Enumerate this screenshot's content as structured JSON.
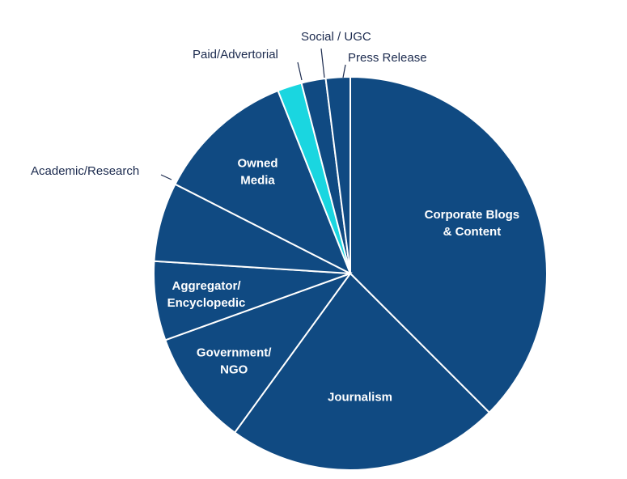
{
  "chart_data": {
    "type": "pie",
    "title": "",
    "start": "12 o'clock",
    "direction": "clockwise",
    "slices": [
      {
        "label": "Corporate Blogs & Content",
        "lines": [
          "Corporate Blogs",
          "& Content"
        ],
        "value": 37.5,
        "color": "#104a82",
        "label_position": "inside"
      },
      {
        "label": "Journalism",
        "lines": [
          "Journalism"
        ],
        "value": 22.5,
        "color": "#104a82",
        "label_position": "inside"
      },
      {
        "label": "Government/ NGO",
        "lines": [
          "Government/",
          "NGO"
        ],
        "value": 9.5,
        "color": "#104a82",
        "label_position": "inside"
      },
      {
        "label": "Aggregator/ Encyclopedic",
        "lines": [
          "Aggregator/",
          "Encyclopedic"
        ],
        "value": 6.5,
        "color": "#104a82",
        "label_position": "inside"
      },
      {
        "label": "Academic/Research",
        "lines": [
          "Academic/Research"
        ],
        "value": 6.5,
        "color": "#104a82",
        "label_position": "outside"
      },
      {
        "label": "Owned Media",
        "lines": [
          "Owned",
          "Media"
        ],
        "value": 11.5,
        "color": "#104a82",
        "label_position": "inside"
      },
      {
        "label": "Paid/Advertorial",
        "lines": [
          "Paid/Advertorial"
        ],
        "value": 2.0,
        "color": "#1ad6e0",
        "label_position": "outside"
      },
      {
        "label": "Social / UGC",
        "lines": [
          "Social / UGC"
        ],
        "value": 2.0,
        "color": "#104a82",
        "label_position": "outside"
      },
      {
        "label": "Press Release",
        "lines": [
          "Press Release"
        ],
        "value": 2.0,
        "color": "#104a82",
        "label_position": "outside"
      }
    ]
  }
}
